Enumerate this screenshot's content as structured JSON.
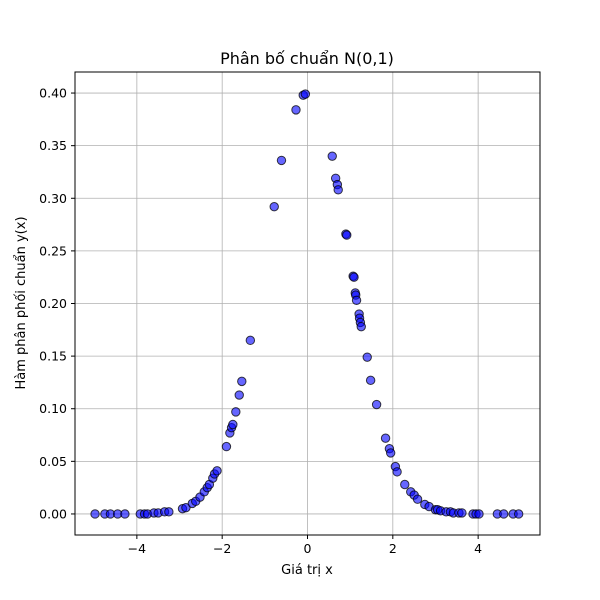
{
  "chart_data": {
    "type": "scatter",
    "title": "Phân bố chuẩn N(0,1)",
    "xlabel": "Giá trị x",
    "ylabel": "Hàm phân phối chuẩn y(x)",
    "xlim": [
      -5.45,
      5.45
    ],
    "ylim": [
      -0.02,
      0.42
    ],
    "xticks": [
      -4,
      -2,
      0,
      2,
      4
    ],
    "xtick_labels": [
      "−4",
      "−2",
      "0",
      "2",
      "4"
    ],
    "yticks": [
      0.0,
      0.05,
      0.1,
      0.15,
      0.2,
      0.25,
      0.3,
      0.35,
      0.4
    ],
    "ytick_labels": [
      "0.00",
      "0.05",
      "0.10",
      "0.15",
      "0.20",
      "0.25",
      "0.30",
      "0.35",
      "0.40"
    ],
    "grid": true,
    "marker_fill": "#0000ff",
    "marker_edge": "#000000",
    "marker_alpha": 0.6,
    "points": [
      [
        -4.98,
        0.0
      ],
      [
        -4.75,
        0.0
      ],
      [
        -4.62,
        0.0
      ],
      [
        -4.45,
        0.0
      ],
      [
        -4.28,
        0.0
      ],
      [
        -3.92,
        0.0
      ],
      [
        -3.82,
        0.0
      ],
      [
        -3.75,
        0.0
      ],
      [
        -3.6,
        0.001
      ],
      [
        -3.5,
        0.001
      ],
      [
        -3.35,
        0.002
      ],
      [
        -3.25,
        0.002
      ],
      [
        -2.93,
        0.005
      ],
      [
        -2.85,
        0.006
      ],
      [
        -2.7,
        0.01
      ],
      [
        -2.62,
        0.012
      ],
      [
        -2.52,
        0.016
      ],
      [
        -2.42,
        0.021
      ],
      [
        -2.35,
        0.025
      ],
      [
        -2.3,
        0.028
      ],
      [
        -2.22,
        0.034
      ],
      [
        -2.18,
        0.038
      ],
      [
        -2.12,
        0.041
      ],
      [
        -1.9,
        0.064
      ],
      [
        -1.82,
        0.077
      ],
      [
        -1.78,
        0.082
      ],
      [
        -1.75,
        0.085
      ],
      [
        -1.68,
        0.097
      ],
      [
        -1.6,
        0.113
      ],
      [
        -1.54,
        0.126
      ],
      [
        -1.34,
        0.165
      ],
      [
        -0.78,
        0.292
      ],
      [
        -0.61,
        0.336
      ],
      [
        -0.27,
        0.384
      ],
      [
        -0.1,
        0.398
      ],
      [
        -0.05,
        0.399
      ],
      [
        0.58,
        0.34
      ],
      [
        0.66,
        0.319
      ],
      [
        0.7,
        0.313
      ],
      [
        0.72,
        0.308
      ],
      [
        0.9,
        0.266
      ],
      [
        0.92,
        0.265
      ],
      [
        1.07,
        0.226
      ],
      [
        1.09,
        0.225
      ],
      [
        1.12,
        0.21
      ],
      [
        1.13,
        0.208
      ],
      [
        1.15,
        0.203
      ],
      [
        1.21,
        0.19
      ],
      [
        1.22,
        0.186
      ],
      [
        1.24,
        0.182
      ],
      [
        1.26,
        0.178
      ],
      [
        1.4,
        0.149
      ],
      [
        1.48,
        0.127
      ],
      [
        1.62,
        0.104
      ],
      [
        1.83,
        0.072
      ],
      [
        1.92,
        0.062
      ],
      [
        1.95,
        0.058
      ],
      [
        2.06,
        0.045
      ],
      [
        2.1,
        0.04
      ],
      [
        2.28,
        0.028
      ],
      [
        2.42,
        0.021
      ],
      [
        2.5,
        0.018
      ],
      [
        2.58,
        0.014
      ],
      [
        2.75,
        0.009
      ],
      [
        2.85,
        0.007
      ],
      [
        3.0,
        0.004
      ],
      [
        3.05,
        0.004
      ],
      [
        3.12,
        0.003
      ],
      [
        3.25,
        0.002
      ],
      [
        3.35,
        0.002
      ],
      [
        3.42,
        0.001
      ],
      [
        3.55,
        0.001
      ],
      [
        3.62,
        0.001
      ],
      [
        3.88,
        0.0
      ],
      [
        3.95,
        0.0
      ],
      [
        4.02,
        0.0
      ],
      [
        4.45,
        0.0
      ],
      [
        4.6,
        0.0
      ],
      [
        4.82,
        0.0
      ],
      [
        4.95,
        0.0
      ]
    ]
  }
}
